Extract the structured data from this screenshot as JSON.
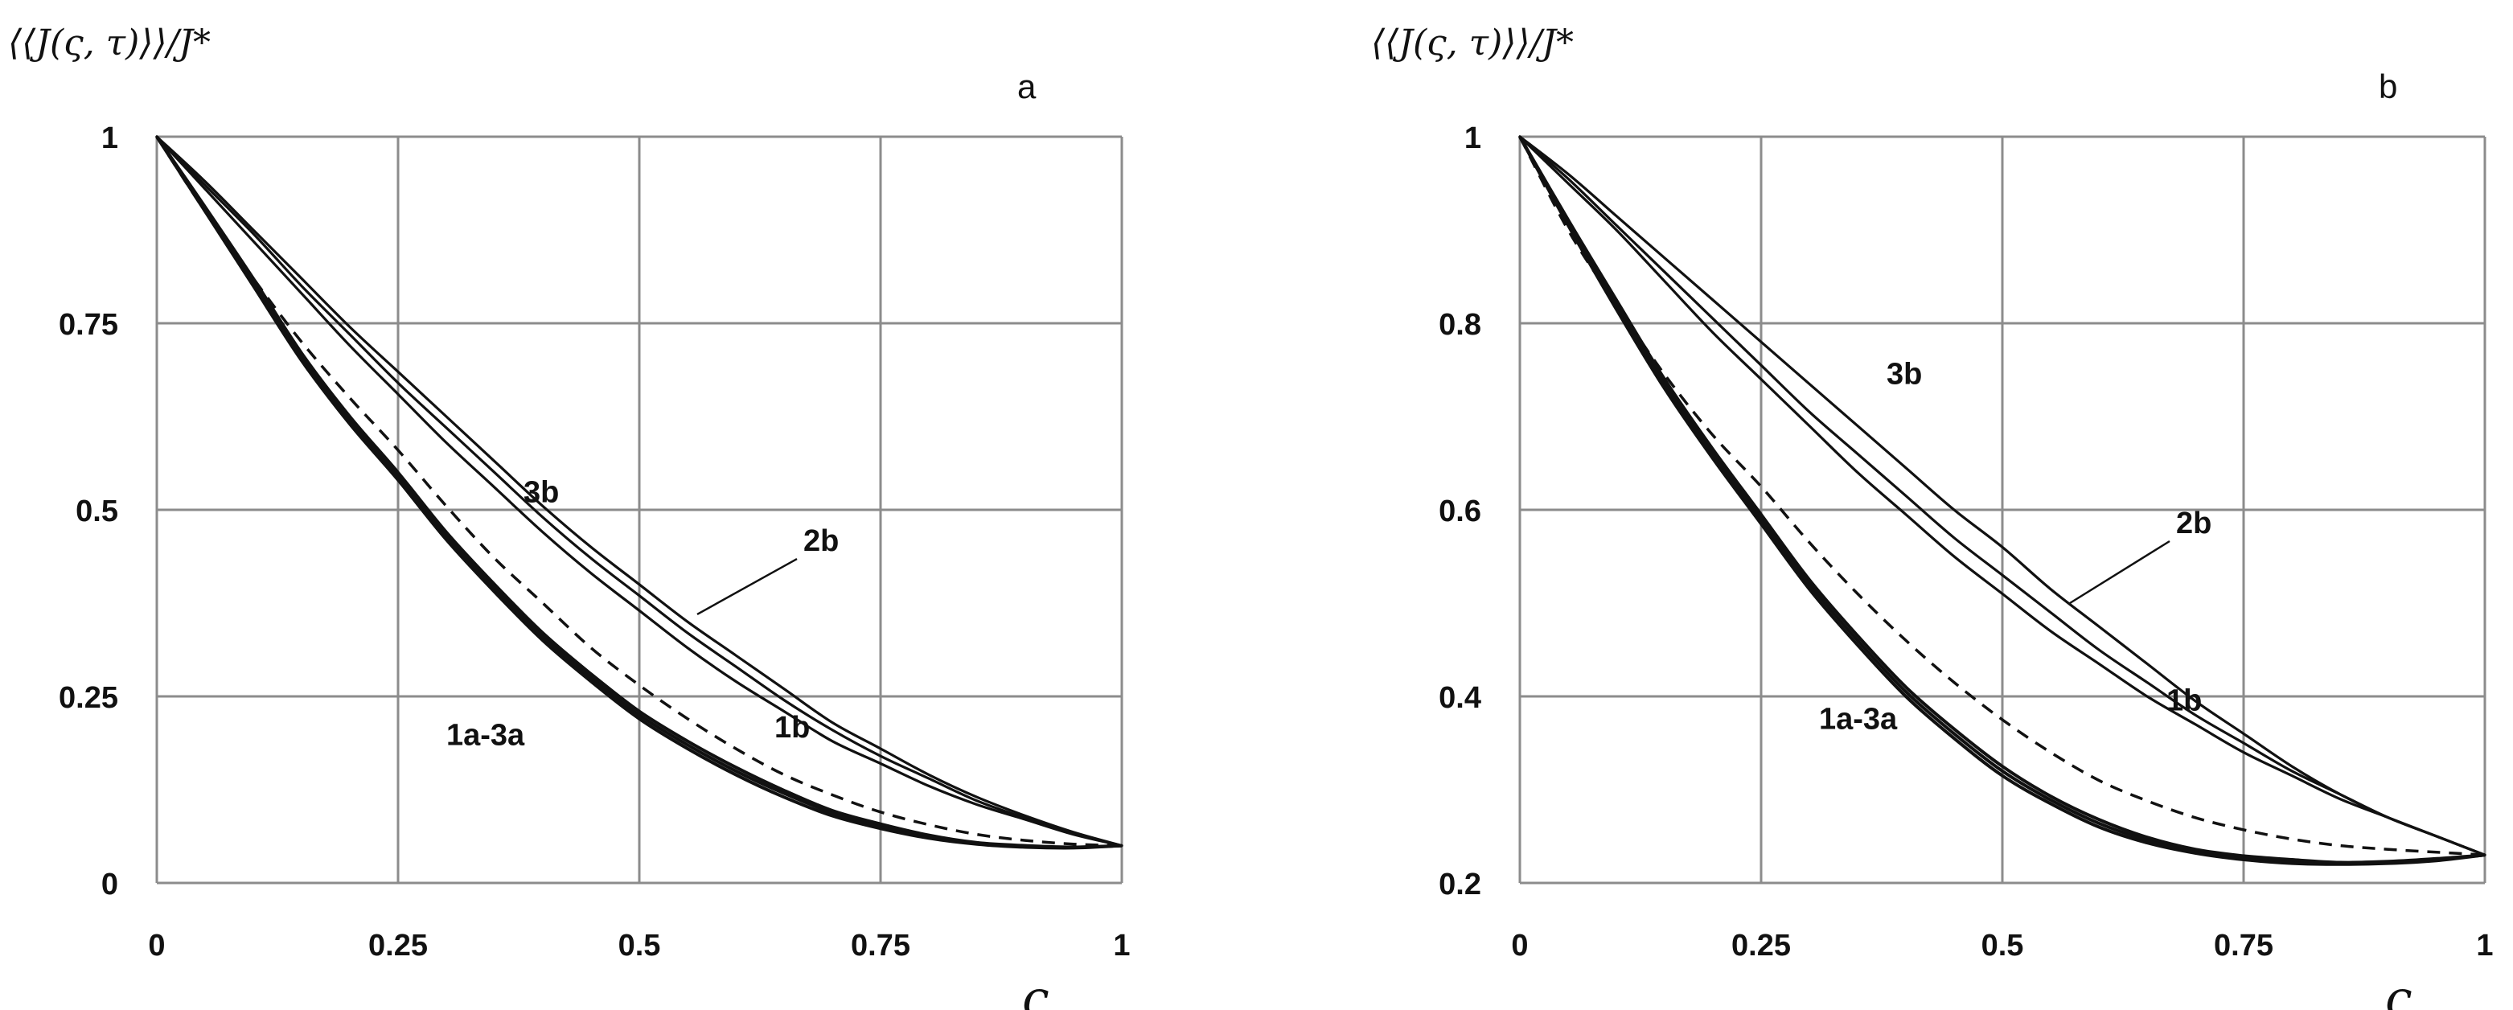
{
  "chart_data": [
    {
      "type": "line",
      "panel": "a",
      "ylabel": "⟨⟨J(ς, τ)⟩⟩/J*",
      "xlabel": "ς",
      "xlim": [
        0,
        1
      ],
      "ylim": [
        0,
        1
      ],
      "x_ticks": [
        "0",
        "0.25",
        "0.5",
        "0.75",
        "1"
      ],
      "y_ticks": [
        "0",
        "0.25",
        "0.5",
        "0.75",
        "1"
      ],
      "x_tick_values": [
        0,
        0.25,
        0.5,
        0.75,
        1
      ],
      "y_tick_values": [
        0,
        0.25,
        0.5,
        0.75,
        1
      ],
      "grid": true,
      "series": [
        {
          "name": "1a",
          "style": "bold",
          "x": [
            0,
            0.05,
            0.1,
            0.15,
            0.2,
            0.25,
            0.3,
            0.35,
            0.4,
            0.45,
            0.5,
            0.55,
            0.6,
            0.65,
            0.7,
            0.75,
            0.8,
            0.85,
            0.9,
            0.95,
            1
          ],
          "y": [
            1,
            0.9,
            0.8,
            0.7,
            0.615,
            0.54,
            0.46,
            0.39,
            0.325,
            0.27,
            0.22,
            0.18,
            0.145,
            0.115,
            0.09,
            0.073,
            0.06,
            0.052,
            0.048,
            0.047,
            0.05
          ]
        },
        {
          "name": "2a",
          "style": "bold",
          "x": [
            0,
            0.05,
            0.1,
            0.15,
            0.2,
            0.25,
            0.3,
            0.35,
            0.4,
            0.45,
            0.5,
            0.55,
            0.6,
            0.65,
            0.7,
            0.75,
            0.8,
            0.85,
            0.9,
            0.95,
            1
          ],
          "y": [
            1,
            0.903,
            0.805,
            0.705,
            0.62,
            0.545,
            0.465,
            0.395,
            0.33,
            0.275,
            0.225,
            0.185,
            0.15,
            0.12,
            0.094,
            0.076,
            0.062,
            0.053,
            0.049,
            0.048,
            0.05
          ]
        },
        {
          "name": "3a",
          "style": "bold",
          "x": [
            0,
            0.05,
            0.1,
            0.15,
            0.2,
            0.25,
            0.3,
            0.35,
            0.4,
            0.45,
            0.5,
            0.55,
            0.6,
            0.65,
            0.7,
            0.75,
            0.8,
            0.85,
            0.9,
            0.95,
            1
          ],
          "y": [
            1,
            0.906,
            0.81,
            0.71,
            0.625,
            0.55,
            0.47,
            0.4,
            0.335,
            0.28,
            0.23,
            0.19,
            0.155,
            0.124,
            0.097,
            0.079,
            0.064,
            0.054,
            0.05,
            0.048,
            0.05
          ]
        },
        {
          "name": "dashed",
          "style": "dashed",
          "x": [
            0,
            0.05,
            0.1,
            0.15,
            0.2,
            0.25,
            0.3,
            0.35,
            0.4,
            0.45,
            0.5,
            0.55,
            0.6,
            0.65,
            0.7,
            0.75,
            0.8,
            0.85,
            0.9,
            0.95,
            1
          ],
          "y": [
            1,
            0.9,
            0.81,
            0.725,
            0.65,
            0.58,
            0.505,
            0.435,
            0.375,
            0.315,
            0.265,
            0.22,
            0.18,
            0.145,
            0.118,
            0.095,
            0.078,
            0.065,
            0.057,
            0.052,
            0.05
          ]
        },
        {
          "name": "1b",
          "style": "thin",
          "x": [
            0,
            0.05,
            0.1,
            0.15,
            0.2,
            0.25,
            0.3,
            0.35,
            0.4,
            0.45,
            0.5,
            0.55,
            0.6,
            0.65,
            0.7,
            0.75,
            0.8,
            0.85,
            0.9,
            0.95,
            1
          ],
          "y": [
            1,
            0.93,
            0.86,
            0.79,
            0.72,
            0.655,
            0.59,
            0.53,
            0.47,
            0.415,
            0.365,
            0.315,
            0.27,
            0.23,
            0.19,
            0.16,
            0.13,
            0.105,
            0.085,
            0.065,
            0.05
          ]
        },
        {
          "name": "2b",
          "style": "thin",
          "x": [
            0,
            0.05,
            0.1,
            0.15,
            0.2,
            0.25,
            0.3,
            0.35,
            0.4,
            0.45,
            0.5,
            0.55,
            0.6,
            0.65,
            0.7,
            0.75,
            0.8,
            0.85,
            0.9,
            0.95,
            1
          ],
          "y": [
            1,
            0.935,
            0.87,
            0.8,
            0.735,
            0.67,
            0.61,
            0.55,
            0.49,
            0.435,
            0.385,
            0.335,
            0.29,
            0.245,
            0.205,
            0.17,
            0.14,
            0.11,
            0.087,
            0.066,
            0.05
          ]
        },
        {
          "name": "3b",
          "style": "thin",
          "x": [
            0,
            0.05,
            0.1,
            0.15,
            0.2,
            0.25,
            0.3,
            0.35,
            0.4,
            0.45,
            0.5,
            0.55,
            0.6,
            0.65,
            0.7,
            0.75,
            0.8,
            0.85,
            0.9,
            0.95,
            1
          ],
          "y": [
            1,
            0.94,
            0.875,
            0.81,
            0.745,
            0.685,
            0.625,
            0.565,
            0.505,
            0.45,
            0.4,
            0.35,
            0.305,
            0.26,
            0.215,
            0.18,
            0.145,
            0.115,
            0.09,
            0.068,
            0.05
          ]
        }
      ],
      "annotations": [
        {
          "text": "3b",
          "x": 0.38,
          "y": 0.51
        },
        {
          "text": "2b",
          "x": 0.67,
          "y": 0.445,
          "leader_to": [
            0.56,
            0.36
          ]
        },
        {
          "text": "1b",
          "x": 0.64,
          "y": 0.195
        },
        {
          "text": "1a-3a",
          "x": 0.3,
          "y": 0.185
        }
      ],
      "panel_label": "a"
    },
    {
      "type": "line",
      "panel": "b",
      "ylabel": "⟨⟨J(ς, τ)⟩⟩/J*",
      "xlabel": "ς",
      "xlim": [
        0,
        1
      ],
      "ylim": [
        0.2,
        1
      ],
      "x_ticks": [
        "0",
        "0.25",
        "0.5",
        "0.75",
        "1"
      ],
      "y_ticks": [
        "0.2",
        "0.4",
        "0.6",
        "0.8",
        "1"
      ],
      "x_tick_values": [
        0,
        0.25,
        0.5,
        0.75,
        1
      ],
      "y_tick_values": [
        0.2,
        0.4,
        0.6,
        0.8,
        1
      ],
      "grid": true,
      "series": [
        {
          "name": "1a",
          "style": "bold",
          "x": [
            0,
            0.05,
            0.1,
            0.15,
            0.2,
            0.25,
            0.3,
            0.35,
            0.4,
            0.45,
            0.5,
            0.55,
            0.6,
            0.65,
            0.7,
            0.75,
            0.8,
            0.85,
            0.9,
            0.95,
            1
          ],
          "y": [
            1,
            0.905,
            0.815,
            0.73,
            0.655,
            0.585,
            0.515,
            0.455,
            0.4,
            0.355,
            0.315,
            0.285,
            0.26,
            0.243,
            0.232,
            0.225,
            0.221,
            0.22,
            0.221,
            0.224,
            0.23
          ]
        },
        {
          "name": "2a",
          "style": "bold",
          "x": [
            0,
            0.05,
            0.1,
            0.15,
            0.2,
            0.25,
            0.3,
            0.35,
            0.4,
            0.45,
            0.5,
            0.55,
            0.6,
            0.65,
            0.7,
            0.75,
            0.8,
            0.85,
            0.9,
            0.95,
            1
          ],
          "y": [
            1,
            0.908,
            0.82,
            0.735,
            0.66,
            0.59,
            0.52,
            0.46,
            0.405,
            0.36,
            0.32,
            0.289,
            0.264,
            0.246,
            0.234,
            0.227,
            0.223,
            0.221,
            0.222,
            0.225,
            0.23
          ]
        },
        {
          "name": "3a",
          "style": "bold",
          "x": [
            0,
            0.05,
            0.1,
            0.15,
            0.2,
            0.25,
            0.3,
            0.35,
            0.4,
            0.45,
            0.5,
            0.55,
            0.6,
            0.65,
            0.7,
            0.75,
            0.8,
            0.85,
            0.9,
            0.95,
            1
          ],
          "y": [
            1,
            0.911,
            0.825,
            0.74,
            0.665,
            0.595,
            0.525,
            0.465,
            0.41,
            0.365,
            0.325,
            0.293,
            0.268,
            0.249,
            0.236,
            0.229,
            0.225,
            0.222,
            0.223,
            0.226,
            0.23
          ]
        },
        {
          "name": "dashed",
          "style": "dashed",
          "x": [
            0,
            0.05,
            0.1,
            0.15,
            0.2,
            0.25,
            0.3,
            0.35,
            0.4,
            0.45,
            0.5,
            0.55,
            0.6,
            0.65,
            0.7,
            0.75,
            0.8,
            0.85,
            0.9,
            0.95,
            1
          ],
          "y": [
            1,
            0.9,
            0.82,
            0.745,
            0.68,
            0.625,
            0.565,
            0.51,
            0.46,
            0.415,
            0.375,
            0.34,
            0.31,
            0.288,
            0.27,
            0.257,
            0.247,
            0.24,
            0.236,
            0.233,
            0.23
          ]
        },
        {
          "name": "1b",
          "style": "thin",
          "x": [
            0,
            0.05,
            0.1,
            0.15,
            0.2,
            0.25,
            0.3,
            0.35,
            0.4,
            0.45,
            0.5,
            0.55,
            0.6,
            0.65,
            0.7,
            0.75,
            0.8,
            0.85,
            0.9,
            0.95,
            1
          ],
          "y": [
            1,
            0.95,
            0.9,
            0.845,
            0.79,
            0.74,
            0.69,
            0.64,
            0.595,
            0.55,
            0.51,
            0.47,
            0.435,
            0.4,
            0.37,
            0.34,
            0.315,
            0.29,
            0.27,
            0.25,
            0.23
          ]
        },
        {
          "name": "2b",
          "style": "thin",
          "x": [
            0,
            0.05,
            0.1,
            0.15,
            0.2,
            0.25,
            0.3,
            0.35,
            0.4,
            0.45,
            0.5,
            0.55,
            0.6,
            0.65,
            0.7,
            0.75,
            0.8,
            0.85,
            0.9,
            0.95,
            1
          ],
          "y": [
            1,
            0.955,
            0.905,
            0.855,
            0.805,
            0.755,
            0.705,
            0.66,
            0.615,
            0.57,
            0.53,
            0.49,
            0.45,
            0.415,
            0.38,
            0.35,
            0.32,
            0.295,
            0.27,
            0.25,
            0.23
          ]
        },
        {
          "name": "3b",
          "style": "thin",
          "x": [
            0,
            0.05,
            0.1,
            0.15,
            0.2,
            0.25,
            0.3,
            0.35,
            0.4,
            0.45,
            0.5,
            0.55,
            0.6,
            0.65,
            0.7,
            0.75,
            0.8,
            0.85,
            0.9,
            0.95,
            1
          ],
          "y": [
            1,
            0.96,
            0.915,
            0.87,
            0.825,
            0.78,
            0.735,
            0.69,
            0.645,
            0.6,
            0.56,
            0.515,
            0.475,
            0.435,
            0.395,
            0.36,
            0.325,
            0.295,
            0.27,
            0.25,
            0.23
          ]
        }
      ],
      "annotations": [
        {
          "text": "3b",
          "x": 0.38,
          "y": 0.735
        },
        {
          "text": "2b",
          "x": 0.68,
          "y": 0.575,
          "leader_to": [
            0.57,
            0.5
          ]
        },
        {
          "text": "1b",
          "x": 0.67,
          "y": 0.385
        },
        {
          "text": "1a-3a",
          "x": 0.31,
          "y": 0.365
        }
      ],
      "panel_label": "b"
    }
  ]
}
